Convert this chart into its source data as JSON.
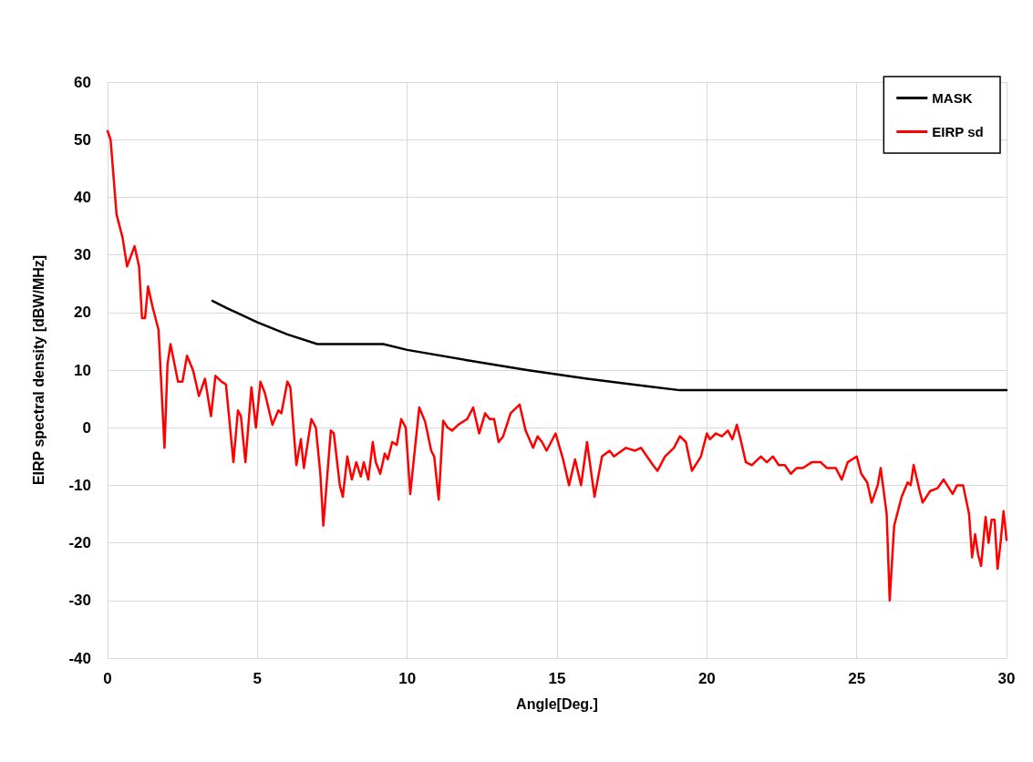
{
  "chart_data": {
    "type": "line",
    "xlabel": "Angle[Deg.]",
    "ylabel": "EIRP spectral density [dBW/MHz]",
    "xlim": [
      0,
      30
    ],
    "xticks": [
      0,
      5,
      10,
      15,
      20,
      25,
      30
    ],
    "ylim": [
      -40,
      60
    ],
    "yticks": [
      -40,
      -30,
      -20,
      -10,
      0,
      10,
      20,
      30,
      40,
      50,
      60
    ],
    "grid": true,
    "legend": "top right",
    "marker": "none",
    "line_style": "solid",
    "series": [
      {
        "name": "MASK",
        "color": "#000000",
        "x": [
          3.5,
          4,
          5,
          6,
          7,
          9.2,
          10,
          12,
          14,
          16,
          18,
          19.1,
          30
        ],
        "values": [
          22,
          20.7,
          18.3,
          16.2,
          14.5,
          14.5,
          13.5,
          11.7,
          10,
          8.5,
          7.2,
          6.5,
          6.5
        ]
      },
      {
        "name": "EIRP sd",
        "color": "#ff0000",
        "x": [
          0,
          0.1,
          0.3,
          0.5,
          0.65,
          0.9,
          1.05,
          1.15,
          1.25,
          1.35,
          1.5,
          1.7,
          1.9,
          2.0,
          2.1,
          2.35,
          2.5,
          2.65,
          2.85,
          3.05,
          3.25,
          3.45,
          3.6,
          3.8,
          3.95,
          4.2,
          4.35,
          4.45,
          4.6,
          4.8,
          4.95,
          5.1,
          5.25,
          5.5,
          5.7,
          5.8,
          6.0,
          6.1,
          6.3,
          6.45,
          6.55,
          6.8,
          6.95,
          7.1,
          7.2,
          7.45,
          7.55,
          7.75,
          7.85,
          8.0,
          8.15,
          8.3,
          8.45,
          8.55,
          8.7,
          8.85,
          8.95,
          9.1,
          9.25,
          9.35,
          9.5,
          9.65,
          9.8,
          9.95,
          10.1,
          10.4,
          10.6,
          10.8,
          10.9,
          11.05,
          11.2,
          11.35,
          11.5,
          11.7,
          12.0,
          12.2,
          12.4,
          12.6,
          12.75,
          12.9,
          13.05,
          13.2,
          13.45,
          13.75,
          13.95,
          14.2,
          14.35,
          14.5,
          14.65,
          14.95,
          15.2,
          15.4,
          15.6,
          15.8,
          16.0,
          16.25,
          16.5,
          16.75,
          16.9,
          17.3,
          17.6,
          17.8,
          18.0,
          18.2,
          18.35,
          18.6,
          18.9,
          19.1,
          19.3,
          19.5,
          19.8,
          20.0,
          20.1,
          20.3,
          20.5,
          20.7,
          20.85,
          21.0,
          21.1,
          21.3,
          21.5,
          21.8,
          22.0,
          22.2,
          22.4,
          22.6,
          22.8,
          23.0,
          23.2,
          23.5,
          23.8,
          24.0,
          24.3,
          24.5,
          24.7,
          25.0,
          25.15,
          25.35,
          25.5,
          25.7,
          25.8,
          26.0,
          26.1,
          26.25,
          26.5,
          26.7,
          26.8,
          26.9,
          27.1,
          27.2,
          27.45,
          27.7,
          27.9,
          28.2,
          28.35,
          28.55,
          28.75,
          28.85,
          28.95,
          29.05,
          29.15,
          29.3,
          29.4,
          29.5,
          29.6,
          29.7,
          29.8,
          29.9,
          30.0
        ],
        "values": [
          51.5,
          50,
          37,
          33,
          28,
          31.5,
          28,
          19,
          19,
          24.5,
          21,
          17,
          -3.5,
          11,
          14.5,
          8,
          8,
          12.5,
          10,
          5.5,
          8.5,
          2,
          9,
          8,
          7.5,
          -6,
          3,
          2,
          -6,
          7,
          0,
          8,
          6,
          0.5,
          3,
          2.5,
          8,
          7,
          -6.5,
          -2,
          -7,
          1.5,
          0,
          -8,
          -17,
          -0.5,
          -1,
          -10,
          -12,
          -5,
          -9,
          -6,
          -8.5,
          -6,
          -9,
          -2.5,
          -6,
          -8,
          -4.5,
          -5.5,
          -2.5,
          -3,
          1.5,
          0,
          -11.5,
          3.5,
          1,
          -4,
          -5,
          -12.5,
          1.2,
          0,
          -0.5,
          0.5,
          1.5,
          3.5,
          -1,
          2.5,
          1.5,
          1.5,
          -2.5,
          -1.5,
          2.5,
          4,
          -0.5,
          -3.5,
          -1.5,
          -2.5,
          -4,
          -1,
          -5.5,
          -10,
          -5.5,
          -10,
          -2.5,
          -12,
          -5,
          -4,
          -5,
          -3.5,
          -4,
          -3.5,
          -5,
          -6.5,
          -7.5,
          -5,
          -3.5,
          -1.5,
          -2.5,
          -7.5,
          -5,
          -1,
          -2,
          -1,
          -1.5,
          -0.5,
          -2,
          0.5,
          -1.5,
          -6,
          -6.5,
          -5,
          -6,
          -5,
          -6.5,
          -6.5,
          -8,
          -7,
          -7,
          -6,
          -6,
          -7,
          -7,
          -9,
          -6,
          -5,
          -8,
          -9.5,
          -13,
          -10,
          -7,
          -15,
          -30,
          -17,
          -12,
          -9.5,
          -10,
          -6.5,
          -11,
          -13,
          -11,
          -10.5,
          -9,
          -11.5,
          -10,
          -10,
          -15,
          -22.5,
          -18.5,
          -22,
          -24,
          -15.5,
          -20,
          -16,
          -16,
          -24.5,
          -20,
          -14.5,
          -19.5
        ]
      }
    ]
  }
}
